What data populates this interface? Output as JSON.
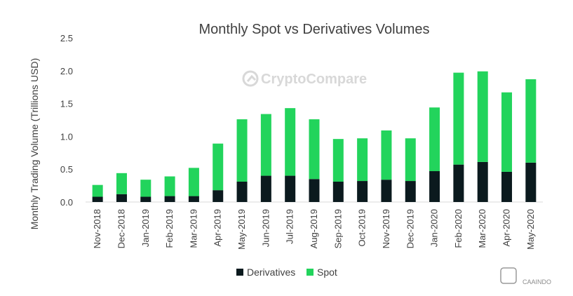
{
  "chart_data": {
    "type": "bar",
    "stacked": true,
    "title": "Monthly Spot vs Derivatives Volumes",
    "ylabel": "Monthly Trading Volume (Trillions USD)",
    "xlabel": "",
    "ylim": [
      0,
      2.5
    ],
    "yticks": [
      "0.0",
      "0.5",
      "1.0",
      "1.5",
      "2.0",
      "2.5"
    ],
    "grid": false,
    "legend": "bottom",
    "categories": [
      "Nov-2018",
      "Dec-2018",
      "Jan-2019",
      "Feb-2019",
      "Mar-2019",
      "Apr-2019",
      "May-2019",
      "Jun-2019",
      "Jul-2019",
      "Aug-2019",
      "Sep-2019",
      "Oct-2019",
      "Nov-2019",
      "Dec-2019",
      "Jan-2020",
      "Feb-2020",
      "Mar-2020",
      "Apr-2020",
      "May-2020"
    ],
    "series": [
      {
        "name": "Derivatives",
        "color": "#0b1a1e",
        "values": [
          0.08,
          0.12,
          0.08,
          0.09,
          0.09,
          0.18,
          0.31,
          0.4,
          0.4,
          0.35,
          0.31,
          0.32,
          0.34,
          0.32,
          0.47,
          0.57,
          0.61,
          0.46,
          0.6
        ]
      },
      {
        "name": "Spot",
        "color": "#22d45c",
        "values": [
          0.18,
          0.32,
          0.26,
          0.3,
          0.43,
          0.71,
          0.95,
          0.94,
          1.03,
          0.91,
          0.65,
          0.65,
          0.75,
          0.65,
          0.97,
          1.4,
          1.38,
          1.21,
          1.27
        ]
      }
    ]
  },
  "watermark": {
    "brand": "CryptoCompare",
    "corner_text": "CAAINDO"
  }
}
